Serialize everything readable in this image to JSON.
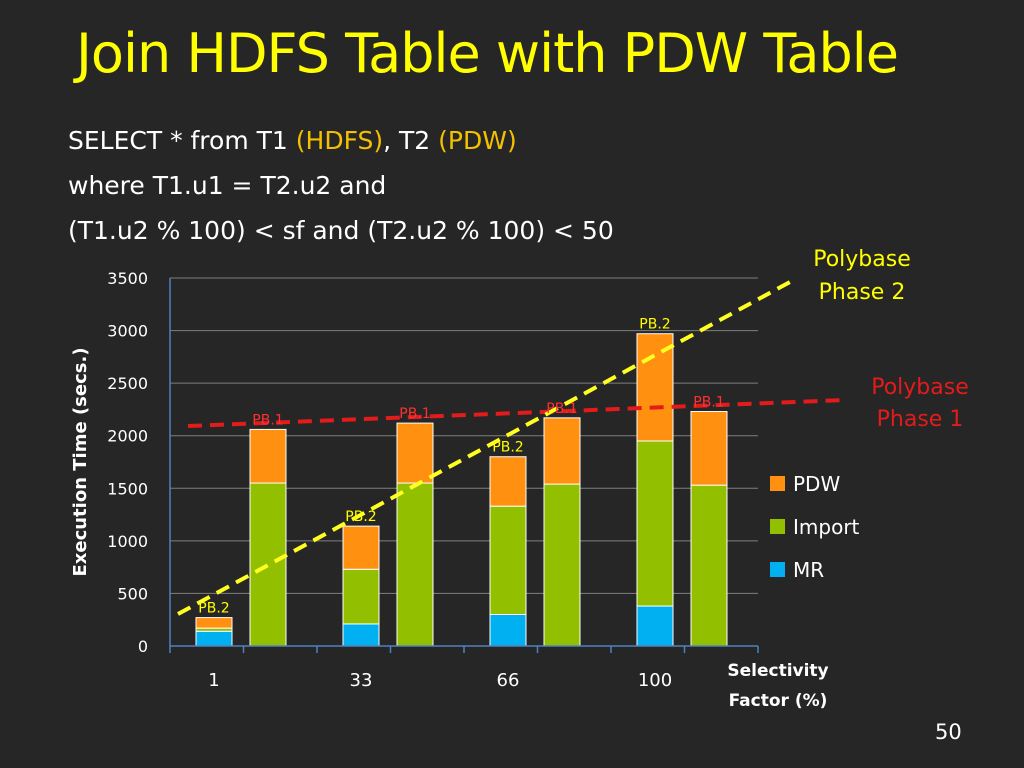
{
  "slide": {
    "title": "Join HDFS Table with PDW Table",
    "query": {
      "line1_a": "SELECT * from T1 ",
      "line1_b": "(HDFS)",
      "line1_c": ", T2 ",
      "line1_d": "(PDW)",
      "line2": "where T1.u1 = T2.u2 and",
      "line3": "(T1.u2 % 100) < sf and (T2.u2 % 100) < 50"
    },
    "slide_number": "50"
  },
  "colors": {
    "background": "#262626",
    "title": "#ffff00",
    "query_highlight": "#f5c000",
    "MR": "#00b0f0",
    "Import": "#92c000",
    "PDW": "#ff9010",
    "phase1": "#e31b1b",
    "phase2": "#ffff22",
    "pb1_label": "#ff3030",
    "pb2_label": "#ffff00",
    "grid": "#7f7f7f",
    "axis": "#4f81bd"
  },
  "chart_data": {
    "type": "bar",
    "stacked": true,
    "categories": [
      "1",
      "33",
      "66",
      "100"
    ],
    "bars_per_category": [
      "PB.2",
      "PB.1"
    ],
    "series": [
      {
        "name": "MR",
        "values": [
          [
            140,
            0
          ],
          [
            210,
            0
          ],
          [
            300,
            0
          ],
          [
            380,
            0
          ]
        ]
      },
      {
        "name": "Import",
        "values": [
          [
            30,
            1550
          ],
          [
            520,
            1550
          ],
          [
            1030,
            1540
          ],
          [
            1570,
            1530
          ]
        ]
      },
      {
        "name": "PDW",
        "values": [
          [
            100,
            510
          ],
          [
            410,
            570
          ],
          [
            470,
            630
          ],
          [
            1020,
            700
          ]
        ]
      }
    ],
    "bar_labels": [
      [
        "PB.2",
        "PB.1"
      ],
      [
        "PB.2",
        "PB.1"
      ],
      [
        "PB.2",
        "PB.1"
      ],
      [
        "PB.2",
        "PB.1"
      ]
    ],
    "trend_lines": [
      {
        "name": "Polybase Phase 1",
        "label_lines": [
          "Polybase",
          "Phase 1"
        ],
        "from": [
          0,
          2080
        ],
        "to": [
          4,
          2330
        ],
        "style": "dashed"
      },
      {
        "name": "Polybase Phase 2",
        "label_lines": [
          "Polybase",
          "Phase 2"
        ],
        "from": [
          0,
          250
        ],
        "to": [
          4,
          3430
        ],
        "style": "dashed"
      }
    ],
    "xlabel_lines": [
      "Selectivity",
      "Factor (%)"
    ],
    "ylabel": "Execution Time (secs.)",
    "ylim": [
      0,
      3500
    ],
    "yticks": [
      "0",
      "500",
      "1000",
      "1500",
      "2000",
      "2500",
      "3000",
      "3500"
    ],
    "legend": [
      "PDW",
      "Import",
      "MR"
    ],
    "legend_position": "right",
    "grid": true
  }
}
